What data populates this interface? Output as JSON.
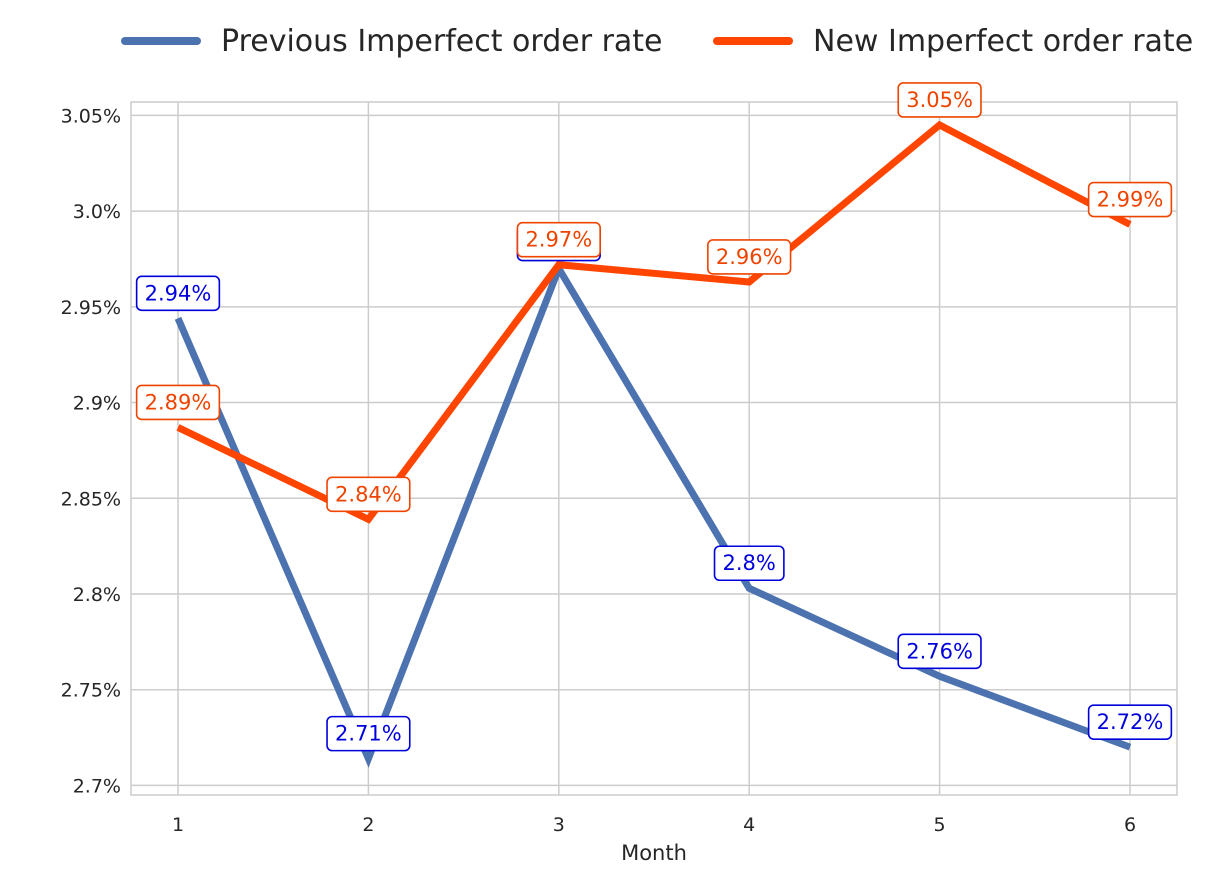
{
  "chart_data": {
    "type": "line",
    "title": "",
    "xlabel": "Month",
    "ylabel": "",
    "categories": [
      1,
      2,
      3,
      4,
      5,
      6
    ],
    "y_ticks": [
      "2.7%",
      "2.75%",
      "2.8%",
      "2.85%",
      "2.9%",
      "2.95%",
      "3.0%",
      "3.05%"
    ],
    "ylim": [
      2.695,
      3.057
    ],
    "grid": true,
    "legend_position": "top",
    "series": [
      {
        "name": "Previous Imperfect order rate",
        "color": "#4C72B0",
        "label_color": "#0000DD",
        "values": [
          2.944,
          2.714,
          2.97,
          2.803,
          2.757,
          2.72
        ],
        "labels": [
          "2.94%",
          "2.71%",
          "2.97%",
          "2.8%",
          "2.76%",
          "2.72%"
        ]
      },
      {
        "name": "New Imperfect order rate",
        "color": "#FF4500",
        "label_color": "#EE4400",
        "values": [
          2.887,
          2.839,
          2.972,
          2.963,
          3.045,
          2.993
        ],
        "labels": [
          "2.89%",
          "2.84%",
          "2.97%",
          "2.96%",
          "3.05%",
          "2.99%"
        ]
      }
    ]
  }
}
